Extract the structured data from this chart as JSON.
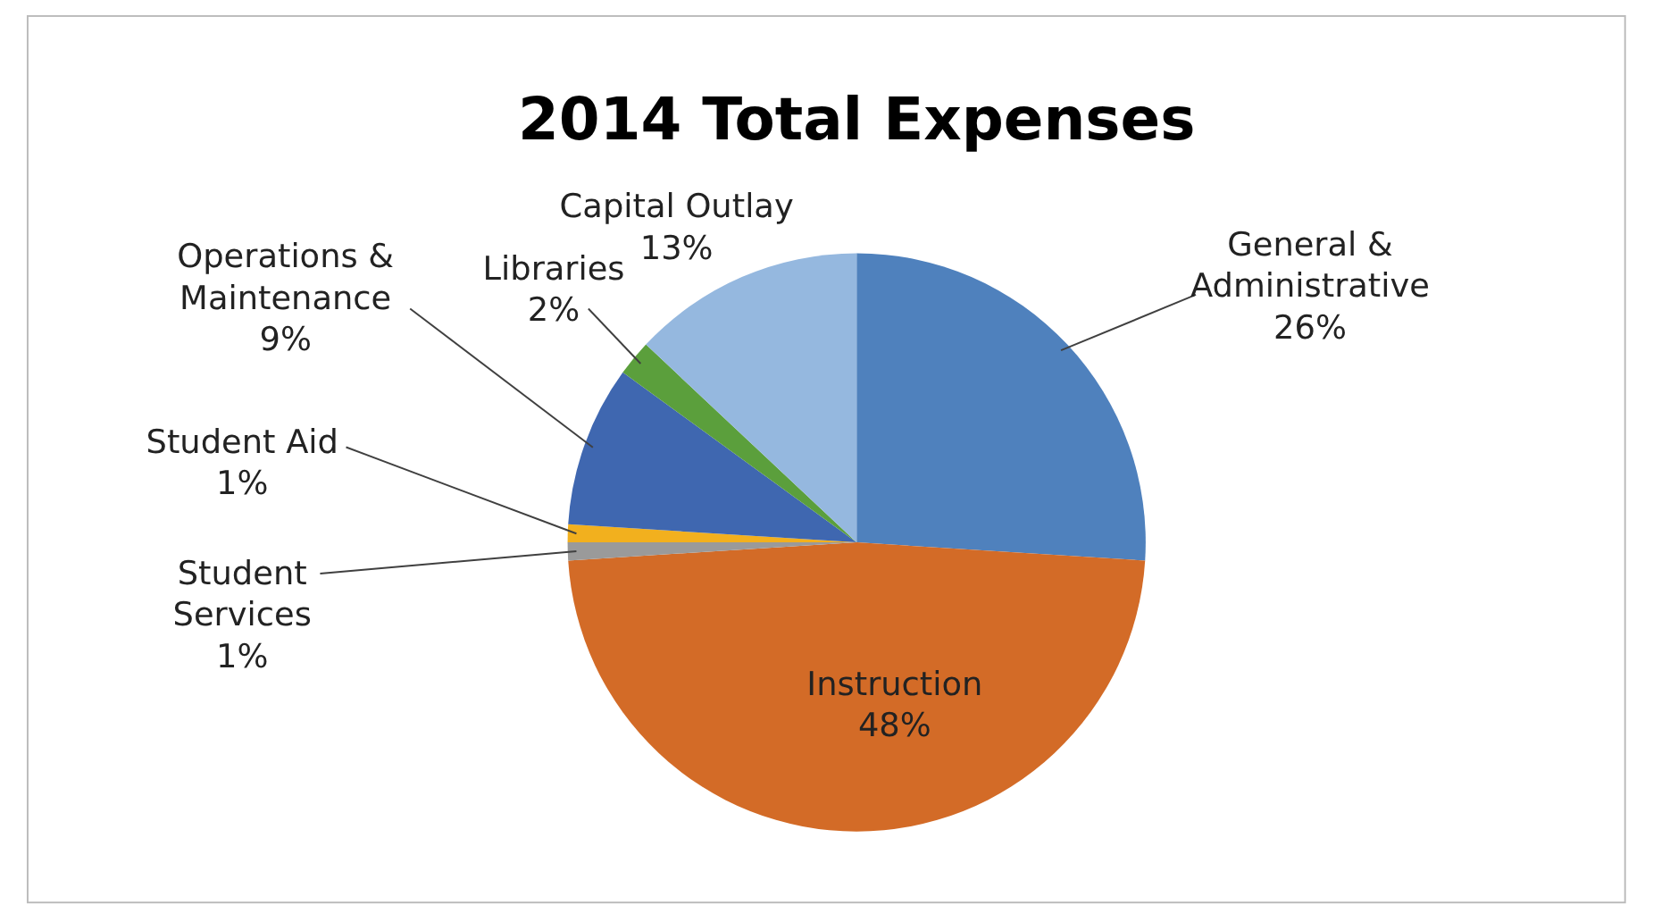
{
  "chart_data": {
    "type": "pie",
    "title": "2014 Total Expenses",
    "categories": [
      "General & Administrative",
      "Instruction",
      "Student Services",
      "Student Aid",
      "Operations & Maintenance",
      "Libraries",
      "Capital Outlay"
    ],
    "values": [
      26,
      48,
      1,
      1,
      9,
      2,
      13
    ],
    "value_labels": [
      "26%",
      "48%",
      "1%",
      "1%",
      "9%",
      "2%",
      "13%"
    ],
    "colors": [
      "#4f81bd",
      "#d36b27",
      "#9a9a9a",
      "#f2b01e",
      "#3f67b0",
      "#5b9f3c",
      "#95b8df"
    ]
  }
}
